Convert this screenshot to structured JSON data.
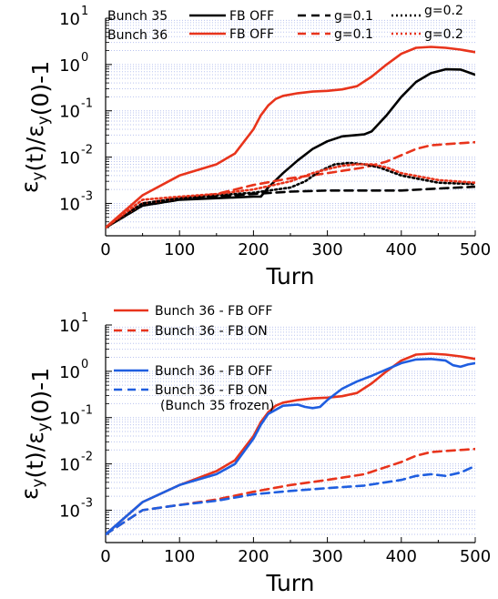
{
  "chart_data": [
    {
      "type": "line",
      "xlabel": "Turn",
      "ylabel": "ε_y(t)/ε_y(0)-1",
      "xlim": [
        0,
        500
      ],
      "ylim": [
        0.0002,
        10
      ],
      "yscale": "log",
      "grid": "horizontal minor dotted",
      "xticks": [
        "0",
        "100",
        "200",
        "300",
        "400",
        "500"
      ],
      "yticks": [
        "10",
        "10",
        "10",
        "10",
        "10"
      ],
      "ytick_exponents": [
        "-3",
        "-2",
        "-1",
        "0",
        "1"
      ],
      "yticks_value": [
        0.001,
        0.01,
        0.1,
        1,
        10
      ],
      "legend_headers": [
        "Bunch 35",
        "Bunch 36"
      ],
      "series": [
        {
          "name": "FB OFF",
          "group": "Bunch 35",
          "color": "#000000",
          "dash": "solid",
          "x": [
            0,
            50,
            100,
            150,
            200,
            210,
            220,
            240,
            260,
            280,
            300,
            320,
            340,
            350,
            360,
            380,
            400,
            420,
            440,
            460,
            480,
            500
          ],
          "y": [
            0.0003,
            0.0009,
            0.0012,
            0.0013,
            0.0014,
            0.0014,
            0.0022,
            0.0045,
            0.0085,
            0.015,
            0.022,
            0.028,
            0.03,
            0.031,
            0.036,
            0.08,
            0.2,
            0.42,
            0.65,
            0.79,
            0.78,
            0.6
          ]
        },
        {
          "name": "FB OFF",
          "group": "Bunch 36",
          "color": "#e8341c",
          "dash": "solid",
          "x": [
            0,
            50,
            100,
            150,
            175,
            200,
            210,
            220,
            230,
            240,
            260,
            280,
            300,
            320,
            340,
            360,
            380,
            400,
            420,
            440,
            460,
            480,
            500
          ],
          "y": [
            0.0003,
            0.0015,
            0.004,
            0.007,
            0.012,
            0.04,
            0.08,
            0.13,
            0.18,
            0.21,
            0.24,
            0.26,
            0.27,
            0.29,
            0.34,
            0.55,
            1.0,
            1.7,
            2.3,
            2.4,
            2.3,
            2.1,
            1.85
          ]
        },
        {
          "name": "g=0.1",
          "group": "Bunch 35",
          "color": "#000000",
          "dash": "dashed",
          "x": [
            0,
            50,
            100,
            150,
            200,
            250,
            300,
            350,
            400,
            450,
            500
          ],
          "y": [
            0.0003,
            0.0009,
            0.0012,
            0.0014,
            0.0016,
            0.0018,
            0.0019,
            0.0019,
            0.0019,
            0.0021,
            0.0023
          ]
        },
        {
          "name": "g=0.1",
          "group": "Bunch 36",
          "color": "#e8341c",
          "dash": "dashed",
          "x": [
            0,
            50,
            100,
            150,
            200,
            250,
            300,
            350,
            380,
            400,
            420,
            440,
            460,
            480,
            500
          ],
          "y": [
            0.0003,
            0.001,
            0.0013,
            0.0016,
            0.0025,
            0.0035,
            0.0045,
            0.006,
            0.008,
            0.011,
            0.015,
            0.018,
            0.019,
            0.02,
            0.021
          ]
        },
        {
          "name": "g=0.2",
          "group": "Bunch 35",
          "color": "#000000",
          "dash": "dotted",
          "x": [
            0,
            50,
            100,
            150,
            200,
            250,
            270,
            290,
            310,
            330,
            350,
            370,
            400,
            450,
            500
          ],
          "y": [
            0.0003,
            0.001,
            0.0013,
            0.0015,
            0.0017,
            0.0022,
            0.003,
            0.005,
            0.007,
            0.0075,
            0.007,
            0.006,
            0.004,
            0.0028,
            0.0026
          ]
        },
        {
          "name": "g=0.2",
          "group": "Bunch 36",
          "color": "#e8341c",
          "dash": "dotted",
          "x": [
            0,
            50,
            100,
            150,
            200,
            250,
            280,
            300,
            320,
            340,
            360,
            380,
            400,
            450,
            500
          ],
          "y": [
            0.0003,
            0.0012,
            0.0014,
            0.0016,
            0.002,
            0.003,
            0.0045,
            0.0055,
            0.0065,
            0.007,
            0.007,
            0.006,
            0.0045,
            0.0032,
            0.0028
          ]
        }
      ]
    },
    {
      "type": "line",
      "xlabel": "Turn",
      "ylabel": "ε_y(t)/ε_y(0)-1",
      "xlim": [
        0,
        500
      ],
      "ylim": [
        0.0002,
        10
      ],
      "yscale": "log",
      "grid": "horizontal minor dotted",
      "xticks": [
        "0",
        "100",
        "200",
        "300",
        "400",
        "500"
      ],
      "yticks": [
        "10",
        "10",
        "10",
        "10",
        "10"
      ],
      "ytick_exponents": [
        "-3",
        "-2",
        "-1",
        "0",
        "1"
      ],
      "yticks_value": [
        0.001,
        0.01,
        0.1,
        1,
        10
      ],
      "legend_note": "(Bunch 35 frozen)",
      "series": [
        {
          "name": "Bunch 36 - FB OFF",
          "color": "#e8341c",
          "dash": "solid",
          "x": [
            0,
            50,
            100,
            150,
            175,
            200,
            210,
            220,
            230,
            240,
            260,
            280,
            300,
            320,
            340,
            360,
            380,
            400,
            420,
            440,
            460,
            480,
            500
          ],
          "y": [
            0.0003,
            0.0015,
            0.0035,
            0.007,
            0.012,
            0.04,
            0.08,
            0.13,
            0.18,
            0.21,
            0.24,
            0.26,
            0.27,
            0.29,
            0.34,
            0.55,
            1.0,
            1.7,
            2.3,
            2.4,
            2.3,
            2.1,
            1.85
          ]
        },
        {
          "name": "Bunch 36 - FB ON",
          "color": "#e8341c",
          "dash": "dashed",
          "x": [
            0,
            50,
            100,
            150,
            200,
            250,
            300,
            350,
            400,
            420,
            440,
            460,
            480,
            500
          ],
          "y": [
            0.0003,
            0.001,
            0.0013,
            0.0017,
            0.0025,
            0.0035,
            0.0045,
            0.006,
            0.011,
            0.015,
            0.018,
            0.019,
            0.02,
            0.021
          ]
        },
        {
          "name": "Bunch 36 - FB OFF",
          "color": "#1f5ee0",
          "dash": "solid",
          "x": [
            0,
            50,
            100,
            150,
            175,
            200,
            210,
            220,
            240,
            260,
            270,
            280,
            290,
            300,
            320,
            340,
            360,
            380,
            400,
            420,
            440,
            460,
            470,
            480,
            490,
            500
          ],
          "y": [
            0.0003,
            0.0015,
            0.0035,
            0.006,
            0.01,
            0.035,
            0.07,
            0.12,
            0.18,
            0.19,
            0.17,
            0.16,
            0.17,
            0.24,
            0.42,
            0.6,
            0.8,
            1.1,
            1.5,
            1.8,
            1.85,
            1.7,
            1.35,
            1.25,
            1.4,
            1.5
          ]
        },
        {
          "name": "Bunch 36 - FB ON",
          "color": "#1f5ee0",
          "dash": "dashed",
          "x": [
            0,
            50,
            100,
            150,
            200,
            250,
            300,
            350,
            400,
            420,
            440,
            460,
            480,
            500
          ],
          "y": [
            0.0003,
            0.001,
            0.0013,
            0.0016,
            0.0022,
            0.0026,
            0.003,
            0.0034,
            0.0045,
            0.0055,
            0.006,
            0.0055,
            0.0065,
            0.009
          ]
        }
      ]
    }
  ]
}
